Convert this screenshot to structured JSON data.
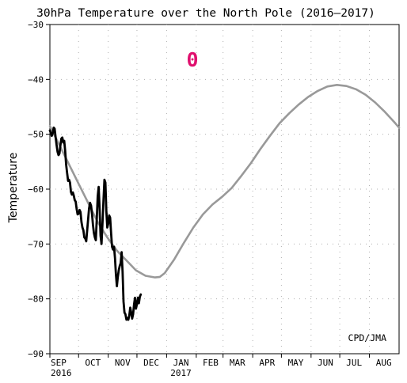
{
  "chart_data": {
    "type": "line",
    "title": "30hPa Temperature over the North Pole (2016–2017)",
    "ylabel": "Temperature",
    "xlabel": "",
    "ylim": [
      -90,
      -30
    ],
    "xlim_days": [
      0,
      365
    ],
    "grid": true,
    "y_ticks": [
      -30,
      -40,
      -50,
      -60,
      -70,
      -80,
      -90
    ],
    "x_ticks": [
      {
        "label": "SEP",
        "year": "2016",
        "day": 0
      },
      {
        "label": "OCT",
        "year": "",
        "day": 30
      },
      {
        "label": "NOV",
        "year": "",
        "day": 61
      },
      {
        "label": "DEC",
        "year": "",
        "day": 91
      },
      {
        "label": "JAN",
        "year": "2017",
        "day": 122
      },
      {
        "label": "FEB",
        "year": "",
        "day": 153
      },
      {
        "label": "MAR",
        "year": "",
        "day": 181
      },
      {
        "label": "APR",
        "year": "",
        "day": 212
      },
      {
        "label": "MAY",
        "year": "",
        "day": 242
      },
      {
        "label": "JUN",
        "year": "",
        "day": 273
      },
      {
        "label": "JUL",
        "year": "",
        "day": 303
      },
      {
        "label": "AUG",
        "year": "",
        "day": 334
      }
    ],
    "annotation": {
      "text": "0",
      "color": "#e0106e"
    },
    "credit": "CPD/JMA",
    "series": [
      {
        "color": "#999999",
        "points": [
          [
            0,
            -48.5
          ],
          [
            10,
            -52.0
          ],
          [
            20,
            -55.5
          ],
          [
            30,
            -59.0
          ],
          [
            40,
            -62.5
          ],
          [
            50,
            -66.0
          ],
          [
            60,
            -68.8
          ],
          [
            70,
            -71.2
          ],
          [
            80,
            -73.0
          ],
          [
            90,
            -74.8
          ],
          [
            100,
            -75.8
          ],
          [
            110,
            -76.1
          ],
          [
            115,
            -76.0
          ],
          [
            120,
            -75.3
          ],
          [
            130,
            -72.8
          ],
          [
            140,
            -69.8
          ],
          [
            150,
            -67.0
          ],
          [
            160,
            -64.6
          ],
          [
            170,
            -62.8
          ],
          [
            180,
            -61.4
          ],
          [
            190,
            -59.8
          ],
          [
            200,
            -57.6
          ],
          [
            210,
            -55.3
          ],
          [
            220,
            -52.7
          ],
          [
            230,
            -50.3
          ],
          [
            240,
            -48.0
          ],
          [
            250,
            -46.2
          ],
          [
            260,
            -44.6
          ],
          [
            270,
            -43.2
          ],
          [
            280,
            -42.1
          ],
          [
            290,
            -41.3
          ],
          [
            300,
            -41.0
          ],
          [
            310,
            -41.2
          ],
          [
            320,
            -41.8
          ],
          [
            330,
            -42.8
          ],
          [
            340,
            -44.2
          ],
          [
            350,
            -45.9
          ],
          [
            360,
            -47.8
          ],
          [
            365,
            -48.8
          ]
        ]
      },
      {
        "color": "#000000",
        "points": [
          [
            0,
            -49.3
          ],
          [
            1,
            -49.8
          ],
          [
            2,
            -50.3
          ],
          [
            3,
            -49.8
          ],
          [
            4,
            -48.8
          ],
          [
            5,
            -49.0
          ],
          [
            6,
            -50.5
          ],
          [
            7,
            -52.0
          ],
          [
            8,
            -53.2
          ],
          [
            9,
            -53.8
          ],
          [
            10,
            -53.5
          ],
          [
            11,
            -52.0
          ],
          [
            12,
            -50.8
          ],
          [
            13,
            -50.6
          ],
          [
            14,
            -51.5
          ],
          [
            15,
            -51.2
          ],
          [
            16,
            -53.0
          ],
          [
            17,
            -55.5
          ],
          [
            18,
            -57.0
          ],
          [
            19,
            -58.5
          ],
          [
            20,
            -58.3
          ],
          [
            21,
            -58.8
          ],
          [
            22,
            -60.5
          ],
          [
            23,
            -61.0
          ],
          [
            24,
            -60.6
          ],
          [
            25,
            -61.2
          ],
          [
            26,
            -62.0
          ],
          [
            27,
            -62.3
          ],
          [
            28,
            -63.6
          ],
          [
            29,
            -64.6
          ],
          [
            30,
            -64.5
          ],
          [
            31,
            -63.8
          ],
          [
            32,
            -64.2
          ],
          [
            33,
            -66.0
          ],
          [
            34,
            -67.0
          ],
          [
            35,
            -67.5
          ],
          [
            36,
            -68.8
          ],
          [
            37,
            -69.0
          ],
          [
            38,
            -69.5
          ],
          [
            39,
            -67.5
          ],
          [
            40,
            -65.5
          ],
          [
            41,
            -63.5
          ],
          [
            42,
            -62.5
          ],
          [
            43,
            -63.0
          ],
          [
            44,
            -64.5
          ],
          [
            45,
            -66.5
          ],
          [
            46,
            -68.0
          ],
          [
            47,
            -68.8
          ],
          [
            48,
            -69.3
          ],
          [
            49,
            -65.5
          ],
          [
            50,
            -61.3
          ],
          [
            51,
            -59.6
          ],
          [
            52,
            -63.5
          ],
          [
            53,
            -68.5
          ],
          [
            54,
            -70.0
          ],
          [
            55,
            -66.0
          ],
          [
            56,
            -62.0
          ],
          [
            57,
            -58.3
          ],
          [
            58,
            -58.8
          ],
          [
            59,
            -64.0
          ],
          [
            60,
            -67.0
          ],
          [
            61,
            -66.3
          ],
          [
            62,
            -64.8
          ],
          [
            63,
            -65.2
          ],
          [
            64,
            -68.0
          ],
          [
            65,
            -70.5
          ],
          [
            66,
            -71.0
          ],
          [
            67,
            -70.5
          ],
          [
            68,
            -72.5
          ],
          [
            69,
            -75.5
          ],
          [
            70,
            -77.7
          ],
          [
            71,
            -76.0
          ],
          [
            72,
            -74.8
          ],
          [
            73,
            -74.0
          ],
          [
            74,
            -73.5
          ],
          [
            75,
            -71.5
          ],
          [
            76,
            -75.0
          ],
          [
            77,
            -80.5
          ],
          [
            78,
            -82.5
          ],
          [
            79,
            -82.8
          ],
          [
            80,
            -83.8
          ],
          [
            81,
            -83.5
          ],
          [
            82,
            -83.8
          ],
          [
            83,
            -83.0
          ],
          [
            84,
            -81.6
          ],
          [
            85,
            -82.5
          ],
          [
            86,
            -83.6
          ],
          [
            87,
            -82.8
          ],
          [
            88,
            -81.0
          ],
          [
            89,
            -79.8
          ],
          [
            90,
            -81.8
          ],
          [
            91,
            -81.0
          ],
          [
            92,
            -79.8
          ],
          [
            93,
            -80.8
          ],
          [
            94,
            -79.6
          ],
          [
            95,
            -79.2
          ]
        ]
      }
    ]
  }
}
